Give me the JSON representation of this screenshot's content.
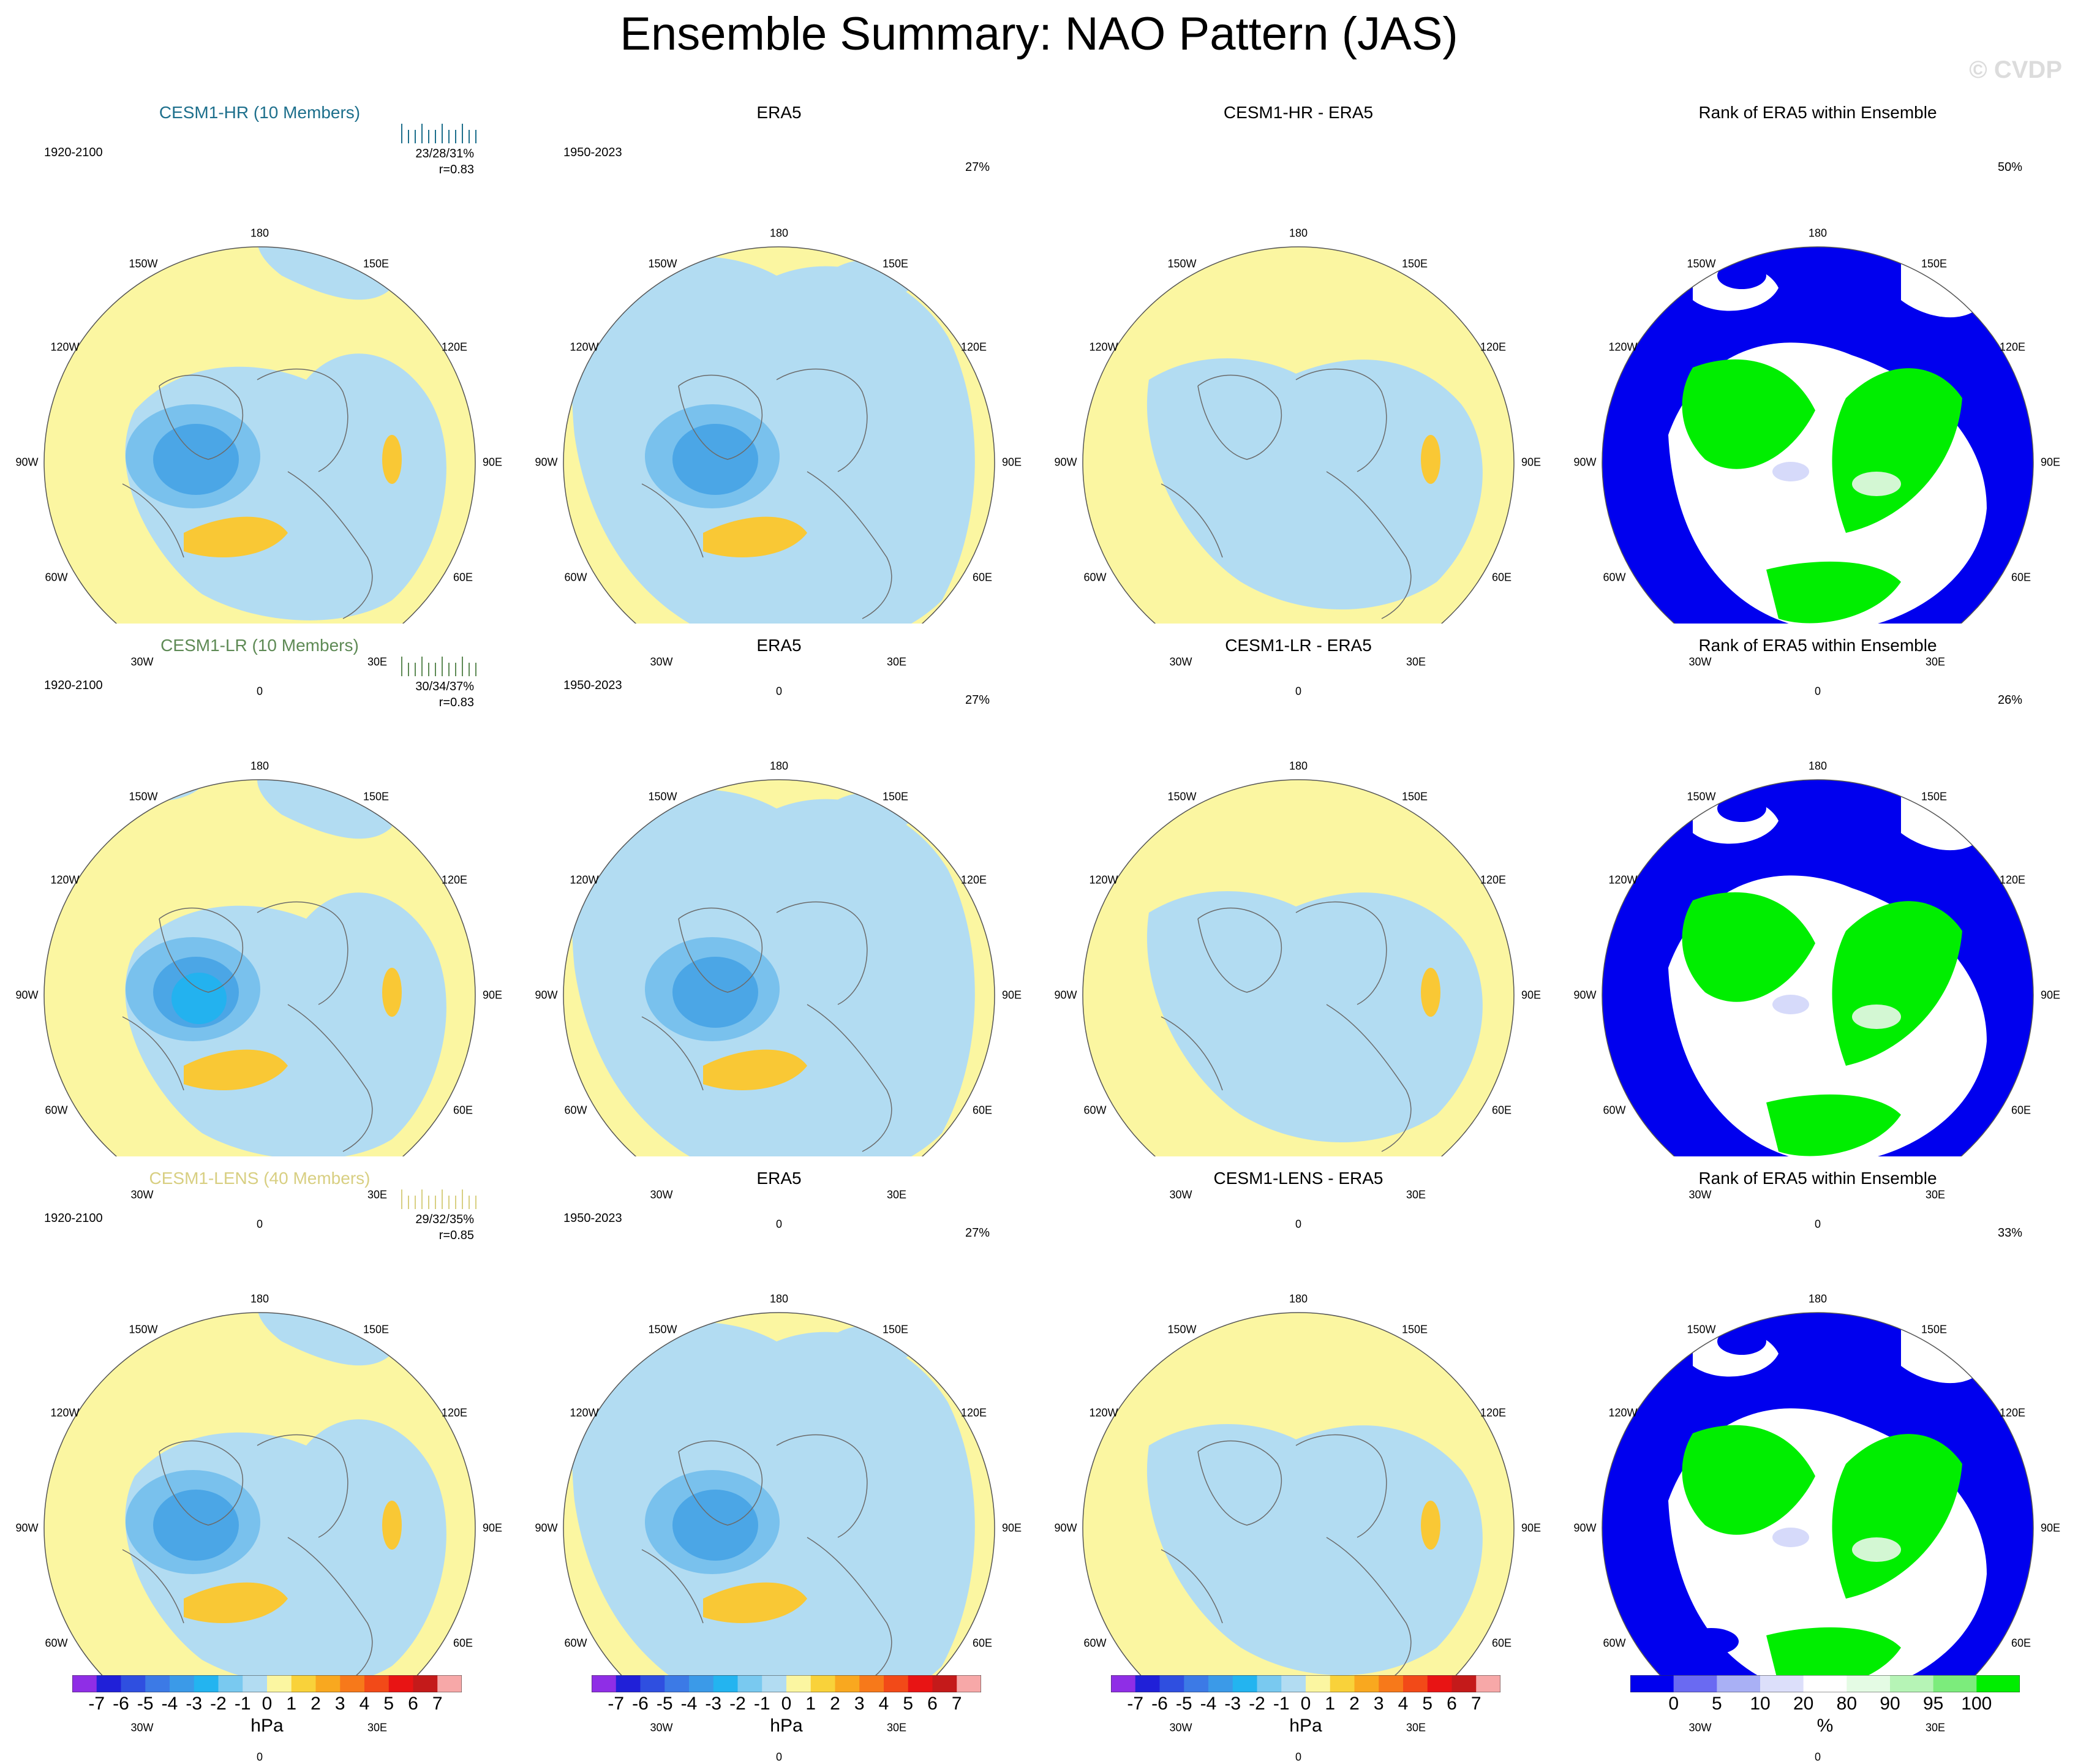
{
  "title": "Ensemble Summary: NAO Pattern (JAS)",
  "watermark": "© CVDP",
  "colors": {
    "pos": "#fbf6a1",
    "neg": "#b2dcf2",
    "pos2": "#f9c835",
    "neg2": "#79c1ed",
    "neg3": "#4ba6e6",
    "neg4": "#23b2ef",
    "rank_blue": "#0000ee",
    "rank_green": "#00ee00",
    "rank_white": "#ffffff",
    "rank_lgreen": "#d3f7d3",
    "rank_lblue": "#d6dafa",
    "coast": "#6b6b6b"
  },
  "lon_labels": {
    "top": "180",
    "bottom": "0",
    "left": "90W",
    "right": "90E",
    "ul1": "150W",
    "ul2": "120W",
    "ll1": "60W",
    "ll2": "30W",
    "ur1": "150E",
    "ur2": "120E",
    "lr1": "60E",
    "lr2": "30E"
  },
  "rows": [
    {
      "model": {
        "title": "CESM1-HR (10 Members)",
        "title_color": "#1d6f8c",
        "period": "1920-2100",
        "stat1": "23/28/31%",
        "stat2": "r=0.83",
        "style": 0
      },
      "obs": {
        "title": "ERA5",
        "period": "1950-2023",
        "pct": "27%"
      },
      "diff": {
        "title": "CESM1-HR - ERA5"
      },
      "rank": {
        "title": "Rank of ERA5 within Ensemble",
        "pct": "50%",
        "style": 0
      }
    },
    {
      "model": {
        "title": "CESM1-LR (10 Members)",
        "title_color": "#5e8a55",
        "period": "1920-2100",
        "stat1": "30/34/37%",
        "stat2": "r=0.83",
        "style": 1
      },
      "obs": {
        "title": "ERA5",
        "period": "1950-2023",
        "pct": "27%"
      },
      "diff": {
        "title": "CESM1-LR - ERA5"
      },
      "rank": {
        "title": "Rank of ERA5 within Ensemble",
        "pct": "26%",
        "style": 1
      }
    },
    {
      "model": {
        "title": "CESM1-LENS (40 Members)",
        "title_color": "#d8cf82",
        "period": "1920-2100",
        "stat1": "29/32/35%",
        "stat2": "r=0.85",
        "style": 2
      },
      "obs": {
        "title": "ERA5",
        "period": "1950-2023",
        "pct": "27%"
      },
      "diff": {
        "title": "CESM1-LENS - ERA5"
      },
      "rank": {
        "title": "Rank of ERA5 within Ensemble",
        "pct": "33%",
        "style": 2
      }
    }
  ],
  "colorbar_hpa": {
    "ticks": [
      "-7",
      "-6",
      "-5",
      "-4",
      "-3",
      "-2",
      "-1",
      "0",
      "1",
      "2",
      "3",
      "4",
      "5",
      "6",
      "7"
    ],
    "colors": [
      "#8f2ee6",
      "#2020d8",
      "#2f4fe0",
      "#3c7ae6",
      "#3b9ae8",
      "#23b4f0",
      "#79c9f0",
      "#b2dcf2",
      "#fbf6a1",
      "#f9d23a",
      "#f9a81f",
      "#f7791a",
      "#f24a18",
      "#e81414",
      "#c41a1a",
      "#f7a8a8"
    ],
    "unit": "hPa"
  },
  "colorbar_rank": {
    "ticks": [
      "0",
      "5",
      "10",
      "20",
      "80",
      "90",
      "95",
      "100"
    ],
    "colors": [
      "#0000ee",
      "#6a6af2",
      "#a9b0f5",
      "#dcdffa",
      "#ffffff",
      "#e4fbe4",
      "#b6f4b6",
      "#7cec7c",
      "#00ee00"
    ],
    "unit": "%"
  }
}
